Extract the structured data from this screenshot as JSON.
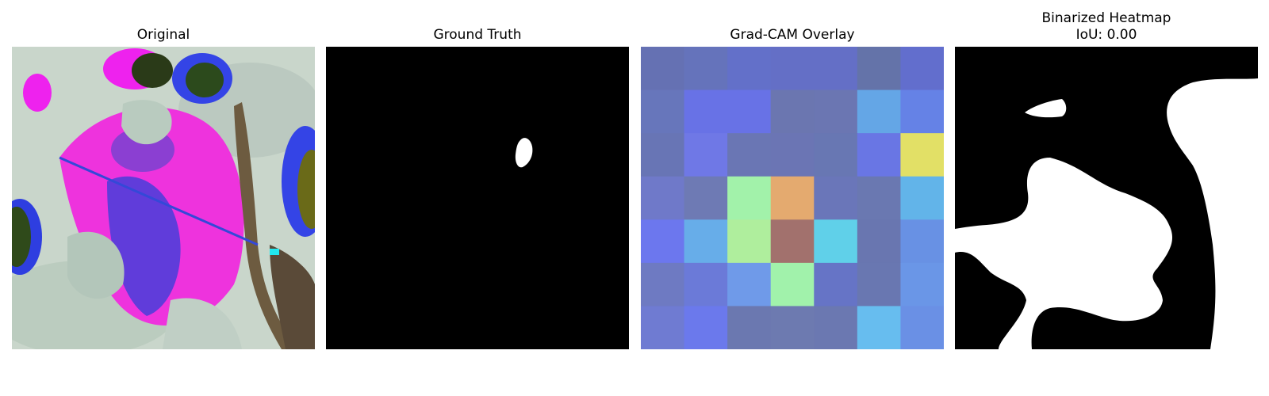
{
  "panels": {
    "original": {
      "title": "Original"
    },
    "ground_truth": {
      "title": "Ground Truth"
    },
    "gradcam": {
      "title": "Grad-CAM Overlay",
      "cells": [
        [
          "#6571b3",
          "#6573bb",
          "#6370c9",
          "#646fc6",
          "#646fc6",
          "#6473a9",
          "#626ecd"
        ],
        [
          "#6776bb",
          "#6872e6",
          "#6872e6",
          "#6b76b0",
          "#6b76b2",
          "#64a6e6",
          "#6582e6"
        ],
        [
          "#6875b5",
          "#6f78e6",
          "#6a76b4",
          "#6b75b4",
          "#6877b3",
          "#6976e4",
          "#e2e066"
        ],
        [
          "#6f79c9",
          "#6e7ab4",
          "#a2f2aa",
          "#e4aa6f",
          "#6a76b9",
          "#6a78b1",
          "#62b4e9"
        ],
        [
          "#6c77ee",
          "#67ade9",
          "#afee9d",
          "#a2716d",
          "#60d0e9",
          "#6976b0",
          "#6891e4"
        ],
        [
          "#6e7ac2",
          "#6b7ad8",
          "#6f9ae9",
          "#a1f2ab",
          "#6674c6",
          "#6977b1",
          "#6a96e7"
        ],
        [
          "#6f7bd2",
          "#6b79ec",
          "#6b78b0",
          "#6d7ab0",
          "#6b78b1",
          "#67bdef",
          "#6a90e5"
        ]
      ]
    },
    "binarized": {
      "title_line1": "Binarized Heatmap",
      "title_line2": "IoU: 0.00",
      "iou": 0.0
    }
  }
}
